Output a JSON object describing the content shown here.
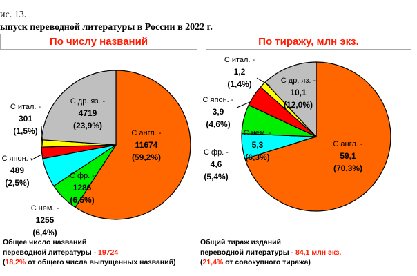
{
  "figure": {
    "caption": "ис. 13.",
    "title": "ыпуск переводной литературы в России в 2022 г."
  },
  "chart_data": [
    {
      "type": "pie",
      "title": "По числу названий",
      "slices": [
        {
          "label": "С англ. -",
          "value": 11674,
          "value_text": "11674",
          "percent_text": "(59,2%)",
          "color": "#ff6600"
        },
        {
          "label": "С фр. -",
          "value": 1286,
          "value_text": "1286",
          "percent_text": "(6,5%)",
          "color": "#00ee00"
        },
        {
          "label": "С нем. -",
          "value": 1255,
          "value_text": "1255",
          "percent_text": "(6,4%)",
          "color": "#00ffff"
        },
        {
          "label": "С япон. -",
          "value": 489,
          "value_text": "489",
          "percent_text": "(2,5%)",
          "color": "#ff0000"
        },
        {
          "label": "С итал. -",
          "value": 301,
          "value_text": "301",
          "percent_text": "(1,5%)",
          "color": "#ffff00"
        },
        {
          "label": "С др. яз. -",
          "value": 4719,
          "value_text": "4719",
          "percent_text": "(23,9%)",
          "color": "#bfbfbf"
        }
      ]
    },
    {
      "type": "pie",
      "title": "По тиражу, млн экз.",
      "slices": [
        {
          "label": "С англ. -",
          "value": 59.1,
          "value_text": "59,1",
          "percent_text": "(70,3%)",
          "color": "#ff6600"
        },
        {
          "label": "С фр. -",
          "value": 4.6,
          "value_text": "4,6",
          "percent_text": "(5,4%)",
          "color": "#00ffff"
        },
        {
          "label": "С нем. -",
          "value": 5.3,
          "value_text": "5,3",
          "percent_text": "(6,3%)",
          "color": "#00ee00"
        },
        {
          "label": "С япон. -",
          "value": 3.9,
          "value_text": "3,9",
          "percent_text": "(4,6%)",
          "color": "#ff0000"
        },
        {
          "label": "С итал. -",
          "value": 1.2,
          "value_text": "1,2",
          "percent_text": "(1,4%)",
          "color": "#ffff00"
        },
        {
          "label": "С др. яз. -",
          "value": 10.1,
          "value_text": "10,1",
          "percent_text": "(12,0%)",
          "color": "#bfbfbf"
        }
      ]
    }
  ],
  "notes": {
    "left": {
      "line1": "Общее число названий",
      "line2_prefix": "переводной литературы - ",
      "line2_value": "19724",
      "line3_pct": "18,2%",
      "line3_rest": " от общего числа выпущенных названий)"
    },
    "right": {
      "line1": "Общий тираж изданий",
      "line2_prefix": "переводной литературы - ",
      "line2_value": "84,1 млн экз.",
      "line3_pct": "21,4%",
      "line3_rest": " от совокупного тиража)"
    }
  }
}
